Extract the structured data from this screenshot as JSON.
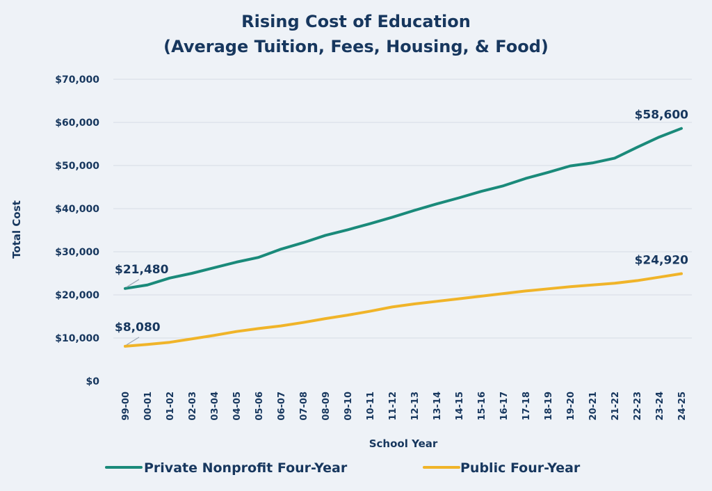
{
  "chart_data": {
    "type": "line",
    "title": "Rising Cost of Education",
    "subtitle": "(Average Tuition, Fees, Housing, & Food)",
    "xlabel": "School Year",
    "ylabel": "Total Cost",
    "ylim": [
      0,
      70000
    ],
    "yticks": [
      0,
      10000,
      20000,
      30000,
      40000,
      50000,
      60000,
      70000
    ],
    "ytick_labels": [
      "$0",
      "$10,000",
      "$20,000",
      "$30,000",
      "$40,000",
      "$50,000",
      "$60,000",
      "$70,000"
    ],
    "grid": true,
    "legend_position": "bottom",
    "categories": [
      "99-00",
      "00-01",
      "01-02",
      "02-03",
      "03-04",
      "04-05",
      "05-06",
      "06-07",
      "07-08",
      "08-09",
      "09-10",
      "10-11",
      "11-12",
      "12-13",
      "13-14",
      "14-15",
      "15-16",
      "16-17",
      "17-18",
      "18-19",
      "19-20",
      "20-21",
      "21-22",
      "22-23",
      "23-24",
      "24-25"
    ],
    "series": [
      {
        "name": "Private Nonprofit Four-Year",
        "color": "#1a8a7a",
        "values": [
          21480,
          22300,
          23900,
          25000,
          26300,
          27600,
          28700,
          30600,
          32100,
          33800,
          35100,
          36500,
          38000,
          39600,
          41100,
          42500,
          44000,
          45300,
          47000,
          48400,
          49900,
          50600,
          51700,
          54200,
          56600,
          58600
        ]
      },
      {
        "name": "Public Four-Year",
        "color": "#f0b429",
        "values": [
          8080,
          8500,
          9000,
          9800,
          10600,
          11500,
          12200,
          12800,
          13600,
          14500,
          15300,
          16200,
          17200,
          17900,
          18500,
          19100,
          19700,
          20300,
          20900,
          21400,
          21900,
          22300,
          22700,
          23300,
          24100,
          24920
        ]
      }
    ],
    "annotations": [
      {
        "series": 0,
        "index": 0,
        "text": "$21,480"
      },
      {
        "series": 1,
        "index": 0,
        "text": "$8,080"
      },
      {
        "series": 0,
        "index": 25,
        "text": "$58,600"
      },
      {
        "series": 1,
        "index": 25,
        "text": "$24,920"
      }
    ]
  }
}
